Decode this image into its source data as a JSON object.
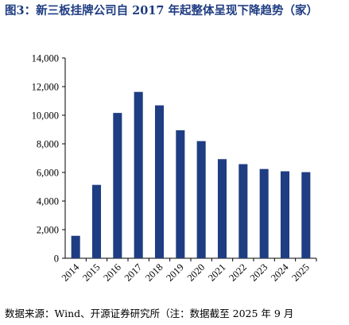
{
  "figure": {
    "title": "图3：新三板挂牌公司自 2017 年起整体呈现下降趋势（家）",
    "source": "数据来源：Wind、开源证券研究所（注：数据截至 2025 年 9 月"
  },
  "chart_data": {
    "type": "bar",
    "categories": [
      "2014",
      "2015",
      "2016",
      "2017",
      "2018",
      "2019",
      "2020",
      "2021",
      "2022",
      "2023",
      "2024",
      "2025"
    ],
    "values": [
      1570,
      5130,
      10160,
      11630,
      10690,
      8950,
      8190,
      6930,
      6580,
      6240,
      6080,
      6020
    ],
    "ylim": [
      0,
      14000
    ],
    "yticks": [
      0,
      2000,
      4000,
      6000,
      8000,
      10000,
      12000,
      14000
    ],
    "ytick_labels": [
      "0",
      "2,000",
      "4,000",
      "6,000",
      "8,000",
      "10,000",
      "12,000",
      "14,000"
    ],
    "bar_color": "#1f3d82",
    "grid": false,
    "legend": "none"
  }
}
